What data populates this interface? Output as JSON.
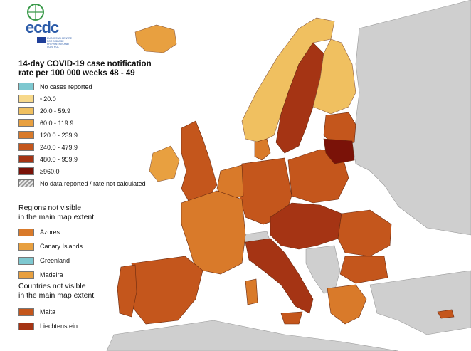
{
  "logo": {
    "text": "ecdc",
    "sub_text": "EUROPEAN CENTRE FOR DISEASE PREVENTION AND CONTROL",
    "icon": "ecdc-logo-icon"
  },
  "legend": {
    "title_line1": "14-day COVID-19 case notification",
    "title_line2": "rate per 100 000 weeks 48 - 49",
    "items": [
      {
        "label": "No cases reported",
        "color": "#7ec8d0"
      },
      {
        "label": "<20.0",
        "color": "#f7d88a"
      },
      {
        "label": "20.0 - 59.9",
        "color": "#f0c060"
      },
      {
        "label": "60.0 - 119.9",
        "color": "#e8a040"
      },
      {
        "label": "120.0 - 239.9",
        "color": "#d97a2a"
      },
      {
        "label": "240.0 - 479.9",
        "color": "#c4561c"
      },
      {
        "label": "480.0 - 959.9",
        "color": "#a53414"
      },
      {
        "label": "≥960.0",
        "color": "#7a1208"
      },
      {
        "label": "No data reported / rate not calculated",
        "pattern": "hatched"
      }
    ]
  },
  "regions_section": {
    "title_line1": "Regions not visible",
    "title_line2": "in the main map extent",
    "items": [
      {
        "label": "Azores",
        "color": "#d97a2a"
      },
      {
        "label": "Canary Islands",
        "color": "#e8a040"
      },
      {
        "label": "Greenland",
        "color": "#7ec8d0"
      },
      {
        "label": "Madeira",
        "color": "#e8a040"
      }
    ]
  },
  "countries_section": {
    "title_line1": "Countries not visible",
    "title_line2": "in the main map extent",
    "items": [
      {
        "label": "Malta",
        "color": "#c4561c"
      },
      {
        "label": "Liechtenstein",
        "color": "#a53414"
      }
    ]
  },
  "map_colors": {
    "sea": "#ffffff",
    "non_eu_land": "#cfcfcf",
    "borders": "#8a5a40"
  }
}
